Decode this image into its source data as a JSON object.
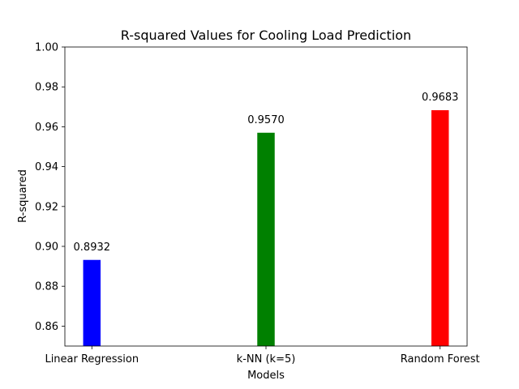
{
  "chart_data": {
    "type": "bar",
    "title": "R-squared Values for Cooling Load Prediction",
    "xlabel": "Models",
    "ylabel": "R-squared",
    "categories": [
      "Linear Regression",
      "k-NN (k=5)",
      "Random Forest"
    ],
    "values": [
      0.8932,
      0.957,
      0.9683
    ],
    "data_labels": [
      "0.8932",
      "0.9570",
      "0.9683"
    ],
    "colors": [
      "#0000ff",
      "#008000",
      "#ff0000"
    ],
    "ylim": [
      0.85,
      1.0
    ],
    "yticks": [
      0.86,
      0.88,
      0.9,
      0.92,
      0.94,
      0.96,
      0.98,
      1.0
    ],
    "ytick_labels": [
      "0.86",
      "0.88",
      "0.90",
      "0.92",
      "0.94",
      "0.96",
      "0.98",
      "1.00"
    ],
    "grid": false,
    "legend": "none"
  }
}
